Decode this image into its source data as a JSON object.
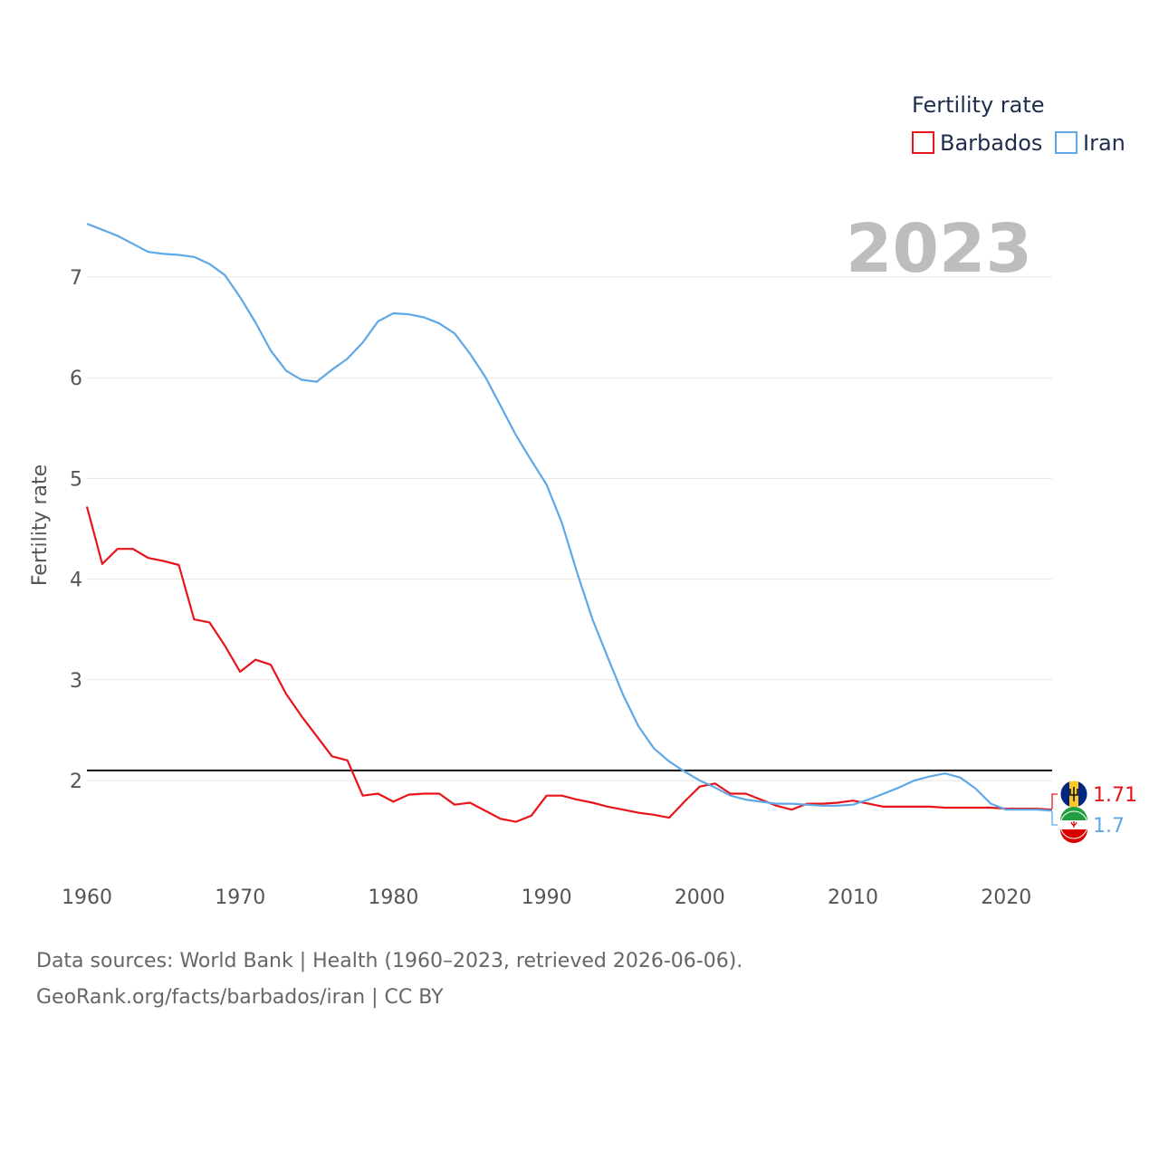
{
  "chart_data": {
    "type": "line",
    "title": "Fertility rate",
    "ylabel": "Fertility rate",
    "xlabel": "",
    "current_year_label": "2023",
    "xlim": [
      1960,
      2023
    ],
    "ylim": [
      1.0,
      7.6
    ],
    "x_ticks": [
      1960,
      1970,
      1980,
      1990,
      2000,
      2010,
      2020
    ],
    "y_ticks": [
      2,
      3,
      4,
      5,
      6,
      7
    ],
    "reference_line": 2.1,
    "grid": true,
    "legend": {
      "title": "Fertility rate",
      "position": "top-right"
    },
    "x": [
      1960,
      1961,
      1962,
      1963,
      1964,
      1965,
      1966,
      1967,
      1968,
      1969,
      1970,
      1971,
      1972,
      1973,
      1974,
      1975,
      1976,
      1977,
      1978,
      1979,
      1980,
      1981,
      1982,
      1983,
      1984,
      1985,
      1986,
      1987,
      1988,
      1989,
      1990,
      1991,
      1992,
      1993,
      1994,
      1995,
      1996,
      1997,
      1998,
      1999,
      2000,
      2001,
      2002,
      2003,
      2004,
      2005,
      2006,
      2007,
      2008,
      2009,
      2010,
      2011,
      2012,
      2013,
      2014,
      2015,
      2016,
      2017,
      2018,
      2019,
      2020,
      2021,
      2022,
      2023
    ],
    "series": [
      {
        "name": "Barbados",
        "color": "#e8141b",
        "end_label": "1.71",
        "flag": "barbados-flag-icon",
        "values": [
          4.72,
          4.15,
          4.3,
          4.3,
          4.21,
          4.18,
          4.14,
          3.6,
          3.57,
          3.34,
          3.08,
          3.2,
          3.15,
          2.86,
          2.64,
          2.44,
          2.24,
          2.2,
          1.85,
          1.87,
          1.79,
          1.86,
          1.87,
          1.87,
          1.76,
          1.78,
          1.7,
          1.62,
          1.59,
          1.65,
          1.85,
          1.85,
          1.81,
          1.78,
          1.74,
          1.71,
          1.68,
          1.66,
          1.63,
          1.79,
          1.94,
          1.97,
          1.87,
          1.87,
          1.81,
          1.75,
          1.71,
          1.77,
          1.77,
          1.78,
          1.8,
          1.77,
          1.74,
          1.74,
          1.74,
          1.74,
          1.73,
          1.73,
          1.73,
          1.73,
          1.72,
          1.72,
          1.72,
          1.71
        ]
      },
      {
        "name": "Iran",
        "color": "#5fa8e8",
        "end_label": "1.7",
        "flag": "iran-flag-icon",
        "values": [
          7.53,
          7.47,
          7.41,
          7.33,
          7.25,
          7.23,
          7.22,
          7.2,
          7.13,
          7.02,
          6.8,
          6.55,
          6.27,
          6.07,
          5.98,
          5.96,
          6.08,
          6.19,
          6.35,
          6.56,
          6.64,
          6.63,
          6.6,
          6.54,
          6.44,
          6.24,
          6.01,
          5.72,
          5.43,
          5.18,
          4.94,
          4.56,
          4.06,
          3.6,
          3.22,
          2.85,
          2.54,
          2.32,
          2.19,
          2.09,
          2.0,
          1.93,
          1.85,
          1.81,
          1.79,
          1.77,
          1.77,
          1.76,
          1.75,
          1.75,
          1.76,
          1.81,
          1.87,
          1.93,
          2.0,
          2.04,
          2.07,
          2.03,
          1.92,
          1.77,
          1.71,
          1.71,
          1.71,
          1.7
        ]
      }
    ]
  },
  "footer": {
    "line1": "Data sources: World Bank | Health (1960–2023, retrieved 2026-06-06).",
    "line2": "GeoRank.org/facts/barbados/iran | CC BY"
  }
}
